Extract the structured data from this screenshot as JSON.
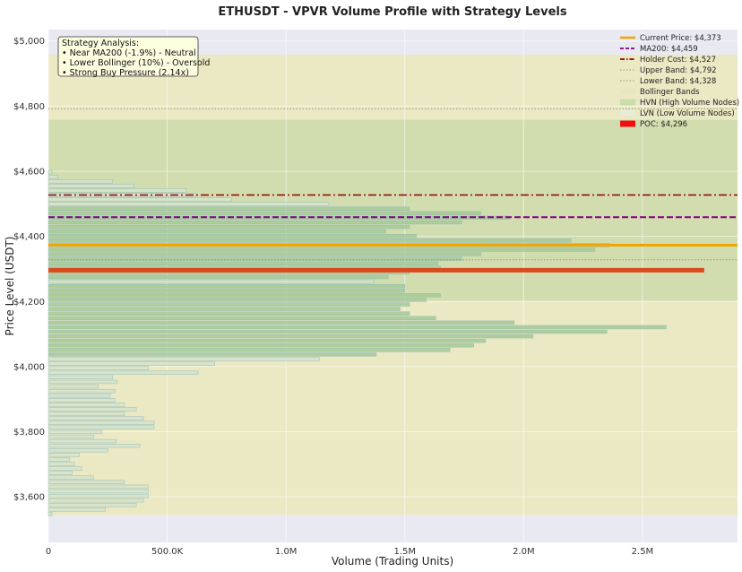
{
  "chart_data": {
    "type": "bar",
    "orientation": "horizontal",
    "title": "ETHUSDT - VPVR Volume Profile with Strategy Levels",
    "xlabel": "Volume (Trading Units)",
    "ylabel": "Price Level (USDT)",
    "xlim": [
      0,
      2900000
    ],
    "ylim": [
      3460,
      5035
    ],
    "xticks": [
      {
        "value": 0,
        "label": "0"
      },
      {
        "value": 500000,
        "label": "500.0K"
      },
      {
        "value": 1000000,
        "label": "1.0M"
      },
      {
        "value": 1500000,
        "label": "1.5M"
      },
      {
        "value": 2000000,
        "label": "2.0M"
      },
      {
        "value": 2500000,
        "label": "2.5M"
      }
    ],
    "yticks": [
      {
        "value": 3600,
        "label": "$3,600"
      },
      {
        "value": 3800,
        "label": "$3,800"
      },
      {
        "value": 4000,
        "label": "$4,000"
      },
      {
        "value": 4200,
        "label": "$4,200"
      },
      {
        "value": 4400,
        "label": "$4,400"
      },
      {
        "value": 4600,
        "label": "$4,600"
      },
      {
        "value": 4800,
        "label": "$4,800"
      },
      {
        "value": 5000,
        "label": "$5,000"
      }
    ],
    "bin_start": 3540,
    "bin_size": 14,
    "volumes": [
      15000,
      240000,
      370000,
      400000,
      420000,
      420000,
      420000,
      320000,
      190000,
      100000,
      140000,
      110000,
      90000,
      130000,
      250000,
      385000,
      285000,
      190000,
      225000,
      445000,
      445000,
      400000,
      320000,
      370000,
      320000,
      280000,
      260000,
      280000,
      210000,
      290000,
      270000,
      630000,
      420000,
      700000,
      1140000,
      1380000,
      1690000,
      1790000,
      1840000,
      2040000,
      2350000,
      2600000,
      1960000,
      1630000,
      1520000,
      1480000,
      1520000,
      1590000,
      1650000,
      1500000,
      1500000,
      1370000,
      1430000,
      1520000,
      1650000,
      1640000,
      1740000,
      1820000,
      2300000,
      2360000,
      2200000,
      1550000,
      1420000,
      1520000,
      1740000,
      1940000,
      1820000,
      1520000,
      1180000,
      770000,
      620000,
      580000,
      360000,
      270000,
      40000,
      15000
    ],
    "hvn_threshold": 1380000,
    "hvn_x_extent": 2760000,
    "poc": {
      "price": 4296,
      "volume": 2760000
    },
    "bollinger": {
      "upper": 4792,
      "lower": 4328,
      "band_top": 4958,
      "band_bottom": 3544
    },
    "hvn_zone": [
      4202,
      4758
    ],
    "levels": [
      {
        "name": "Current Price: $4,373",
        "price": 4373,
        "color": "#f0a500",
        "style": "solid"
      },
      {
        "name": "MA200: $4,459",
        "price": 4459,
        "color": "#800080",
        "style": "dashed"
      },
      {
        "name": "Holder Cost: $4,527",
        "price": 4527,
        "color": "#8b0000",
        "style": "dashdot"
      },
      {
        "name": "Upper Band: $4,792",
        "price": 4792,
        "color": "#999966",
        "style": "dotted"
      },
      {
        "name": "Lower Band: $4,328",
        "price": 4328,
        "color": "#999966",
        "style": "dotted"
      }
    ],
    "legend": {
      "placement": "top-right",
      "entries": [
        {
          "label": "Current Price: $4,373",
          "kind": "line",
          "color": "#f0a500",
          "style": "solid"
        },
        {
          "label": "MA200: $4,459",
          "kind": "line",
          "color": "#800080",
          "style": "dashed"
        },
        {
          "label": "Holder Cost: $4,527",
          "kind": "line",
          "color": "#8b0000",
          "style": "dashdot"
        },
        {
          "label": "Upper Band: $4,792",
          "kind": "line",
          "color": "#999966",
          "style": "dotted"
        },
        {
          "label": "Lower Band: $4,328",
          "kind": "line",
          "color": "#999966",
          "style": "dotted"
        },
        {
          "label": "Bollinger Bands",
          "kind": "patch",
          "color": "#e6e6bf"
        },
        {
          "label": "HVN (High Volume Nodes)",
          "kind": "patch",
          "color": "#c8dca8"
        },
        {
          "label": "LVN (Low Volume Nodes)",
          "kind": "patch",
          "color": "#e6ecd8"
        },
        {
          "label": "POC: $4,296",
          "kind": "patch",
          "color": "#ee1111"
        }
      ]
    },
    "annotation": {
      "placement": "top-left",
      "lines": [
        "Strategy Analysis:",
        "• Near MA200 (-1.9%) - Neutral",
        "• Lower Bollinger (10%) - Oversold",
        "• Strong Buy Pressure (2.14x)"
      ]
    },
    "colors": {
      "plot_bg": "#e9e9f2",
      "band_fill": "#ebe8c4",
      "hvn_fill": "#c9daa8",
      "hvn_bar": "#a8cc98",
      "lvn_bar": "#d6e4cc",
      "bar_edge": "#8fb8b8",
      "poc": "#d94a1e",
      "grid": "#ffffff"
    },
    "grid": true
  }
}
